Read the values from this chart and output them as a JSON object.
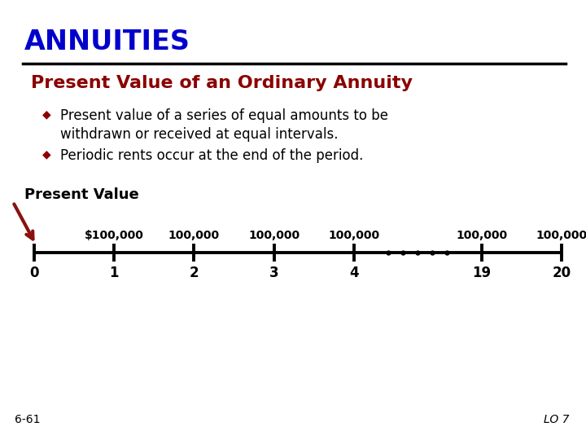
{
  "title": "ANNUITIES",
  "title_color": "#0000CC",
  "subtitle": "Present Value of an Ordinary Annuity",
  "subtitle_color": "#8B0000",
  "bullet1_line1": "Present value of a series of equal amounts to be",
  "bullet1_line2": "withdrawn or received at equal intervals.",
  "bullet2": "Periodic rents occur at the end of the period.",
  "bullet_color": "#000000",
  "diamond_color": "#8B0000",
  "pv_label": "Present Value",
  "timeline_labels": [
    "0",
    "1",
    "2",
    "3",
    "4",
    "19",
    "20"
  ],
  "timeline_positions": [
    0.0,
    1.0,
    2.0,
    3.0,
    4.0,
    5.6,
    6.6
  ],
  "payment_labels": [
    "$100,000",
    "100,000",
    "100,000",
    "100,000",
    "100,000",
    "100,000"
  ],
  "payment_positions": [
    1.0,
    2.0,
    3.0,
    4.0,
    5.6,
    6.6
  ],
  "footer_left": "6-61",
  "footer_right": "LO 7",
  "bg_color": "#FFFFFF",
  "line_color": "#000000"
}
